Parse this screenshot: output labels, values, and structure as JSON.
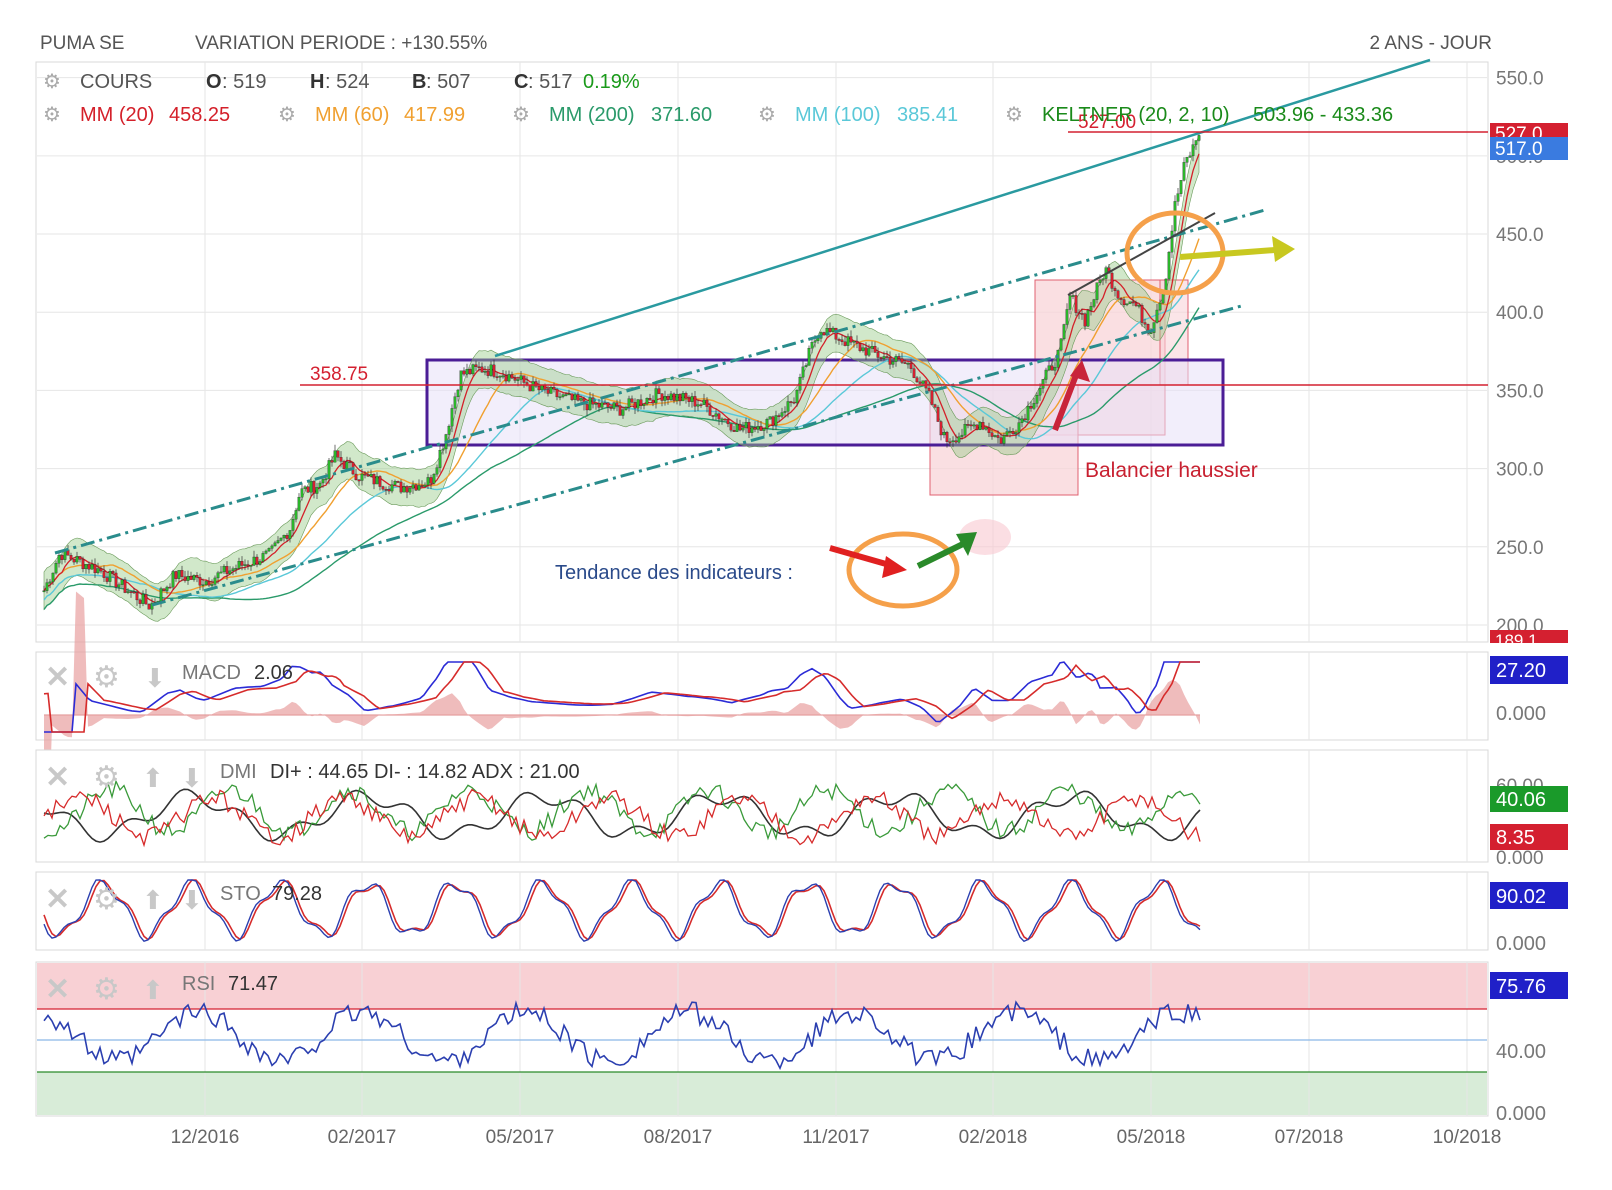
{
  "header": {
    "symbol": "PUMA SE",
    "variation": "VARIATION PERIODE : +130.55%",
    "period": "2 ANS - JOUR"
  },
  "legend": {
    "cours_label": "COURS",
    "o_key": "O",
    "o_val": ": 519",
    "h_key": "H",
    "h_val": ": 524",
    "b_key": "B",
    "b_val": ": 507",
    "c_key": "C",
    "c_val": ": 517",
    "c_change": "0.19%",
    "mm20": "MM (20)",
    "mm20_val": "458.25",
    "mm60": "MM (60)",
    "mm60_val": "417.99",
    "mm200": "MM (200)",
    "mm200_val": "371.60",
    "mm100": "MM (100)",
    "mm100_val": "385.41",
    "keltner": "KELTNER (20, 2, 10)",
    "keltner_val": "503.96 - 433.36"
  },
  "colors": {
    "mm20": "#d4202a",
    "mm60": "#f0a030",
    "mm200": "#2a9a6a",
    "mm100": "#5ac8d8",
    "keltner": "#1a8a1a",
    "trend": "#2a8c8c",
    "box": "#4b1d96",
    "macd": "#2b2bd6",
    "signal": "#d62b2b",
    "dip": "#3a9a3a",
    "dim": "#d62b2b",
    "adx": "#333333",
    "rsi": "#2b3fb0",
    "price_tag": "#3a7be0"
  },
  "annotations": {
    "support_label": "358.75",
    "resistance_label": "527.00",
    "balancier": "Balancier haussier",
    "tendance": "Tendance des indicateurs :"
  },
  "price_axis": {
    "ticks": [
      "550.0",
      "500.0",
      "450.0",
      "400.0",
      "350.0",
      "300.0",
      "250.0",
      "200.0"
    ],
    "tag_527": "527.0",
    "tag_517": "517.0",
    "tag_189": "189.1"
  },
  "x_axis": {
    "ticks": [
      "12/2016",
      "02/2017",
      "05/2017",
      "08/2017",
      "11/2017",
      "02/2018",
      "05/2018",
      "07/2018",
      "10/2018"
    ]
  },
  "macd": {
    "label": "MACD",
    "value": "2.06",
    "tag": "27.20",
    "zero": "0.000"
  },
  "dmi": {
    "label": "DMI",
    "text": "DI+ : 44.65 DI- : 14.82 ADX : 21.00",
    "tag_top": "60.00",
    "tag_green": "40.06",
    "tag_red": "8.35",
    "zero": "0.000"
  },
  "sto": {
    "label": "STO",
    "value": "79.28",
    "tag": "90.02",
    "zero": "0.000"
  },
  "rsi": {
    "label": "RSI",
    "value": "71.47",
    "tag": "75.76",
    "mid": "40.00",
    "zero": "0.000"
  },
  "chart_data": {
    "type": "line",
    "title": "PUMA SE",
    "x_range": [
      "2016-09",
      "2018-10"
    ],
    "ylim": [
      189.1,
      560
    ],
    "series": [
      {
        "name": "COURS",
        "x": [
          "2016-10",
          "2016-11",
          "2016-12",
          "2017-01",
          "2017-02",
          "2017-03",
          "2017-04",
          "2017-05",
          "2017-06",
          "2017-07",
          "2017-08",
          "2017-09",
          "2017-10",
          "2017-11",
          "2017-12",
          "2018-01",
          "2018-02",
          "2018-03",
          "2018-04",
          "2018-05",
          "2018-06"
        ],
        "values": [
          230,
          228,
          215,
          240,
          290,
          302,
          360,
          362,
          342,
          336,
          330,
          328,
          390,
          383,
          358,
          305,
          330,
          410,
          425,
          415,
          517
        ]
      }
    ],
    "levels": {
      "support": 358.75,
      "resistance": 527.0,
      "last": 517.0
    },
    "indicators": {
      "MACD": 2.06,
      "DI+": 44.65,
      "DI-": 14.82,
      "ADX": 21.0,
      "STO": 79.28,
      "RSI": 71.47
    }
  }
}
